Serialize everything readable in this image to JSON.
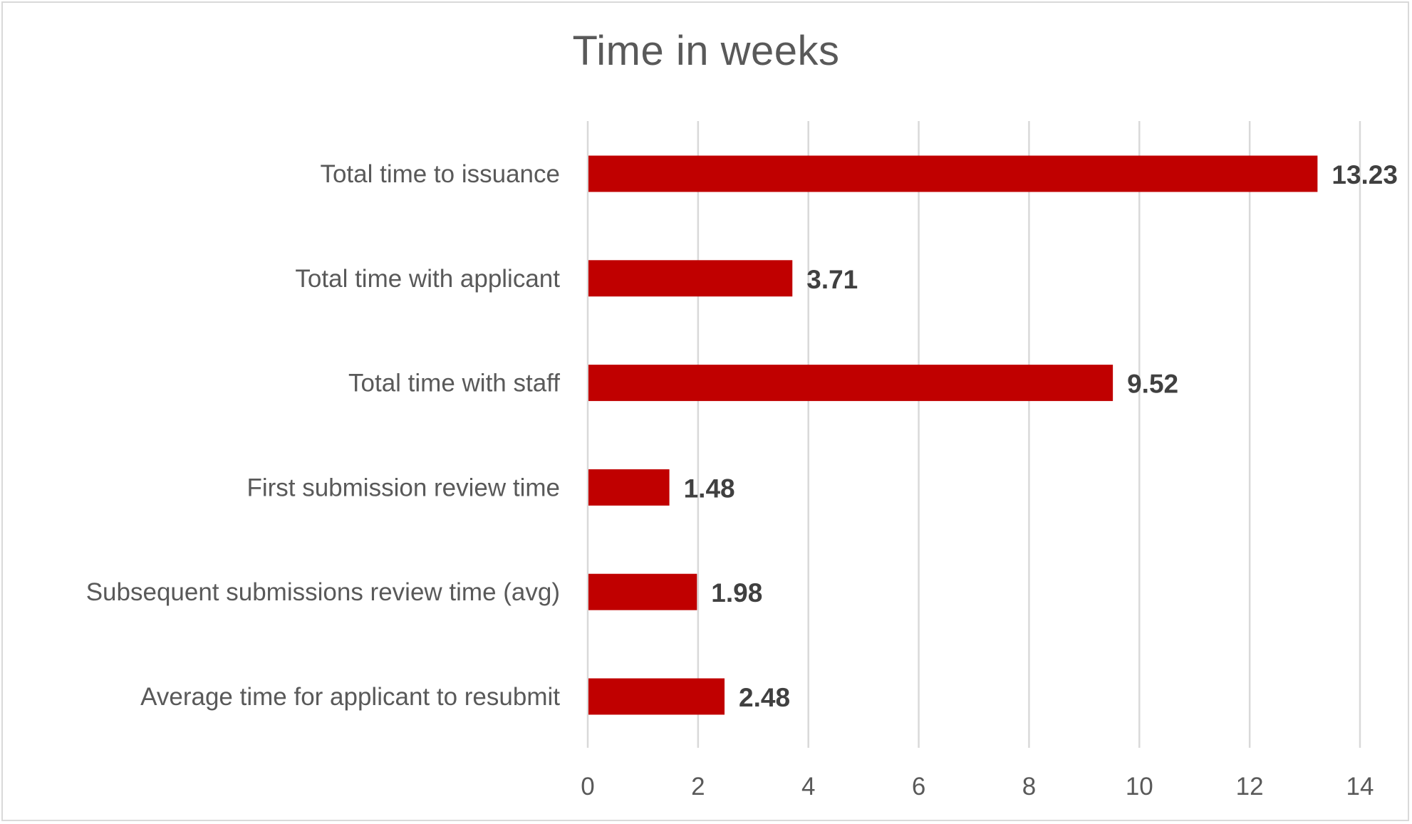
{
  "chart_data": {
    "type": "bar",
    "orientation": "horizontal",
    "title": "Time in weeks",
    "xlabel": "",
    "ylabel": "",
    "xlim": [
      0,
      14
    ],
    "ticks": [
      "0",
      "2",
      "4",
      "6",
      "8",
      "10",
      "12",
      "14"
    ],
    "tick_values": [
      0,
      2,
      4,
      6,
      8,
      10,
      12,
      14
    ],
    "grid": "vertical",
    "legend": "none",
    "bar_color": "#C00000",
    "categories": [
      "Total time to issuance",
      "Total time with applicant",
      "Total time with staff",
      "First submission review time",
      "Subsequent submissions review time (avg)",
      "Average time for applicant to resubmit"
    ],
    "values": [
      13.23,
      3.71,
      9.52,
      1.48,
      1.98,
      2.48
    ],
    "data_labels": [
      "13.23",
      "3.71",
      "9.52",
      "1.48",
      "1.98",
      "2.48"
    ]
  }
}
